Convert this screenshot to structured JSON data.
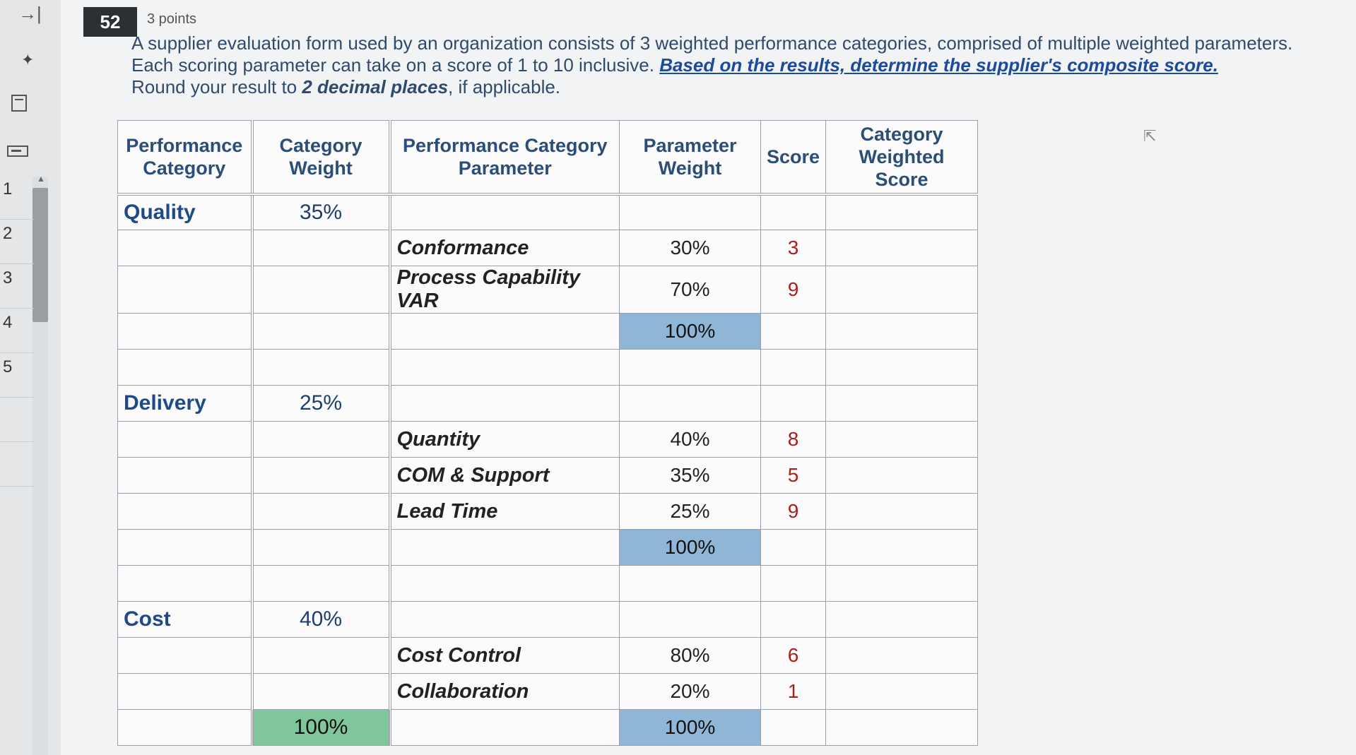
{
  "sidebar": {
    "collapse_icon": "→|",
    "pin_icon": "pin-icon",
    "nav_items": [
      "1",
      "2",
      "3",
      "4",
      "5",
      "",
      ""
    ]
  },
  "question": {
    "number": "52",
    "points": "3 points",
    "line1": "A supplier evaluation form used by an organization consists of 3 weighted performance categories, comprised of multiple weighted parameters.",
    "line2_a": "Each scoring parameter can take on a score of 1 to 10 inclusive. ",
    "line2_link": "Based on the results, determine the supplier's composite score.",
    "line3_a": "Round your result to ",
    "line3_b": "2 decimal places",
    "line3_c": ", if applicable."
  },
  "table": {
    "headers": [
      "Performance Category",
      "Category Weight",
      "Performance Category Parameter",
      "Parameter Weight",
      "Score",
      "Category Weighted Score"
    ],
    "rows": [
      {
        "cat": "Quality",
        "cw": "35%",
        "param": "",
        "pw": "",
        "score": "",
        "kind": "cat"
      },
      {
        "cat": "",
        "cw": "",
        "param": "Conformance",
        "pw": "30%",
        "score": "3",
        "kind": "param"
      },
      {
        "cat": "",
        "cw": "",
        "param": "Process Capability VAR",
        "pw": "70%",
        "score": "9",
        "kind": "param"
      },
      {
        "cat": "",
        "cw": "",
        "param": "",
        "pw": "100%",
        "score": "",
        "kind": "total"
      },
      {
        "cat": "",
        "cw": "",
        "param": "",
        "pw": "",
        "score": "",
        "kind": "blank"
      },
      {
        "cat": "Delivery",
        "cw": "25%",
        "param": "",
        "pw": "",
        "score": "",
        "kind": "cat"
      },
      {
        "cat": "",
        "cw": "",
        "param": "Quantity",
        "pw": "40%",
        "score": "8",
        "kind": "param"
      },
      {
        "cat": "",
        "cw": "",
        "param": "COM & Support",
        "pw": "35%",
        "score": "5",
        "kind": "param"
      },
      {
        "cat": "",
        "cw": "",
        "param": "Lead Time",
        "pw": "25%",
        "score": "9",
        "kind": "param"
      },
      {
        "cat": "",
        "cw": "",
        "param": "",
        "pw": "100%",
        "score": "",
        "kind": "total"
      },
      {
        "cat": "",
        "cw": "",
        "param": "",
        "pw": "",
        "score": "",
        "kind": "blank"
      },
      {
        "cat": "Cost",
        "cw": "40%",
        "param": "",
        "pw": "",
        "score": "",
        "kind": "cat"
      },
      {
        "cat": "",
        "cw": "",
        "param": "Cost Control",
        "pw": "80%",
        "score": "6",
        "kind": "param"
      },
      {
        "cat": "",
        "cw": "",
        "param": "Collaboration",
        "pw": "20%",
        "score": "1",
        "kind": "param"
      },
      {
        "cat": "",
        "cw": "100%",
        "param": "",
        "pw": "100%",
        "score": "",
        "kind": "grandtotal"
      }
    ]
  },
  "colors": {
    "total_blue": "#8fb6d6",
    "total_green": "#7fc79a",
    "score_red": "#a81f1f"
  }
}
